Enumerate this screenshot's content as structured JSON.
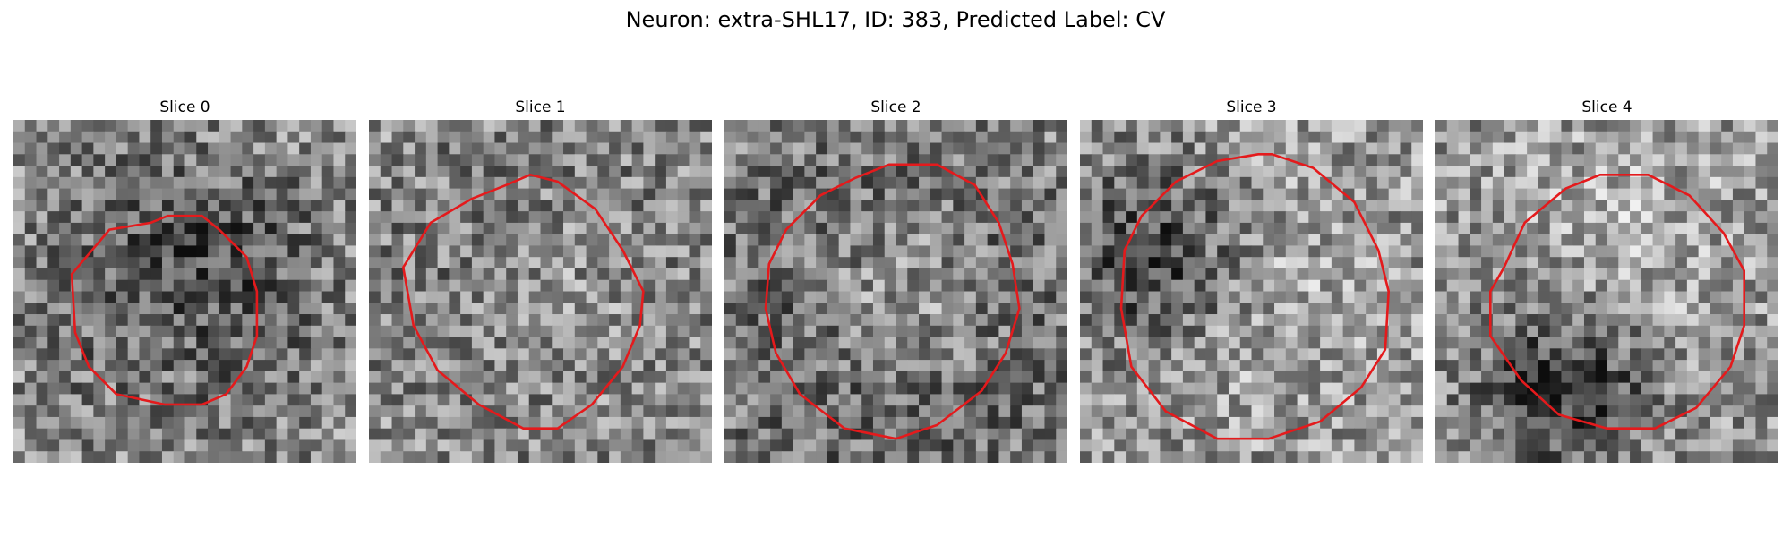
{
  "figure": {
    "title": "Neuron: extra-SHL17, ID: 383, Predicted Label: CV"
  },
  "colors": {
    "contour": "#e41a1c",
    "background": "#ffffff"
  },
  "grid_size": 30,
  "panels": [
    {
      "title": "Slice 0",
      "dark_blob": [
        0.5,
        0.5,
        0.28,
        -0.35
      ],
      "bright_blob": [
        0.45,
        0.62,
        0.15,
        0.15
      ],
      "contour": [
        [
          0.17,
          0.45
        ],
        [
          0.28,
          0.32
        ],
        [
          0.4,
          0.3
        ],
        [
          0.45,
          0.28
        ],
        [
          0.55,
          0.28
        ],
        [
          0.6,
          0.32
        ],
        [
          0.68,
          0.4
        ],
        [
          0.71,
          0.5
        ],
        [
          0.71,
          0.63
        ],
        [
          0.68,
          0.72
        ],
        [
          0.62,
          0.8
        ],
        [
          0.55,
          0.83
        ],
        [
          0.44,
          0.83
        ],
        [
          0.3,
          0.8
        ],
        [
          0.22,
          0.72
        ],
        [
          0.18,
          0.62
        ]
      ]
    },
    {
      "title": "Slice 1",
      "dark_blob": [
        0.5,
        0.45,
        0.35,
        -0.18
      ],
      "bright_blob": [
        0.55,
        0.5,
        0.2,
        0.18
      ],
      "contour": [
        [
          0.1,
          0.43
        ],
        [
          0.18,
          0.3
        ],
        [
          0.3,
          0.23
        ],
        [
          0.4,
          0.19
        ],
        [
          0.47,
          0.16
        ],
        [
          0.55,
          0.18
        ],
        [
          0.66,
          0.26
        ],
        [
          0.74,
          0.38
        ],
        [
          0.8,
          0.5
        ],
        [
          0.79,
          0.6
        ],
        [
          0.74,
          0.72
        ],
        [
          0.65,
          0.83
        ],
        [
          0.55,
          0.9
        ],
        [
          0.45,
          0.9
        ],
        [
          0.32,
          0.83
        ],
        [
          0.2,
          0.73
        ],
        [
          0.13,
          0.6
        ]
      ]
    },
    {
      "title": "Slice 2",
      "dark_blob": [
        0.5,
        0.55,
        0.42,
        -0.3
      ],
      "bright_blob": [
        0.52,
        0.52,
        0.2,
        0.32
      ],
      "contour": [
        [
          0.13,
          0.42
        ],
        [
          0.18,
          0.32
        ],
        [
          0.28,
          0.22
        ],
        [
          0.38,
          0.17
        ],
        [
          0.48,
          0.13
        ],
        [
          0.62,
          0.13
        ],
        [
          0.73,
          0.19
        ],
        [
          0.8,
          0.3
        ],
        [
          0.84,
          0.42
        ],
        [
          0.86,
          0.55
        ],
        [
          0.82,
          0.68
        ],
        [
          0.75,
          0.79
        ],
        [
          0.62,
          0.89
        ],
        [
          0.5,
          0.93
        ],
        [
          0.35,
          0.9
        ],
        [
          0.22,
          0.8
        ],
        [
          0.15,
          0.68
        ],
        [
          0.12,
          0.55
        ]
      ]
    },
    {
      "title": "Slice 3",
      "dark_blob": [
        0.22,
        0.4,
        0.18,
        -0.35
      ],
      "bright_blob": [
        0.55,
        0.5,
        0.25,
        0.1
      ],
      "contour": [
        [
          0.13,
          0.38
        ],
        [
          0.18,
          0.28
        ],
        [
          0.28,
          0.18
        ],
        [
          0.4,
          0.12
        ],
        [
          0.52,
          0.1
        ],
        [
          0.56,
          0.1
        ],
        [
          0.68,
          0.14
        ],
        [
          0.8,
          0.24
        ],
        [
          0.87,
          0.38
        ],
        [
          0.9,
          0.5
        ],
        [
          0.89,
          0.67
        ],
        [
          0.82,
          0.78
        ],
        [
          0.7,
          0.88
        ],
        [
          0.55,
          0.93
        ],
        [
          0.4,
          0.93
        ],
        [
          0.25,
          0.85
        ],
        [
          0.15,
          0.72
        ],
        [
          0.12,
          0.55
        ]
      ]
    },
    {
      "title": "Slice 4",
      "dark_blob": [
        0.38,
        0.78,
        0.18,
        -0.4
      ],
      "bright_blob": [
        0.55,
        0.4,
        0.25,
        0.12
      ],
      "contour": [
        [
          0.2,
          0.43
        ],
        [
          0.26,
          0.3
        ],
        [
          0.38,
          0.2
        ],
        [
          0.48,
          0.16
        ],
        [
          0.62,
          0.16
        ],
        [
          0.74,
          0.22
        ],
        [
          0.84,
          0.33
        ],
        [
          0.9,
          0.44
        ],
        [
          0.9,
          0.6
        ],
        [
          0.86,
          0.72
        ],
        [
          0.76,
          0.84
        ],
        [
          0.64,
          0.9
        ],
        [
          0.5,
          0.9
        ],
        [
          0.36,
          0.86
        ],
        [
          0.25,
          0.76
        ],
        [
          0.16,
          0.63
        ],
        [
          0.16,
          0.5
        ]
      ]
    }
  ]
}
